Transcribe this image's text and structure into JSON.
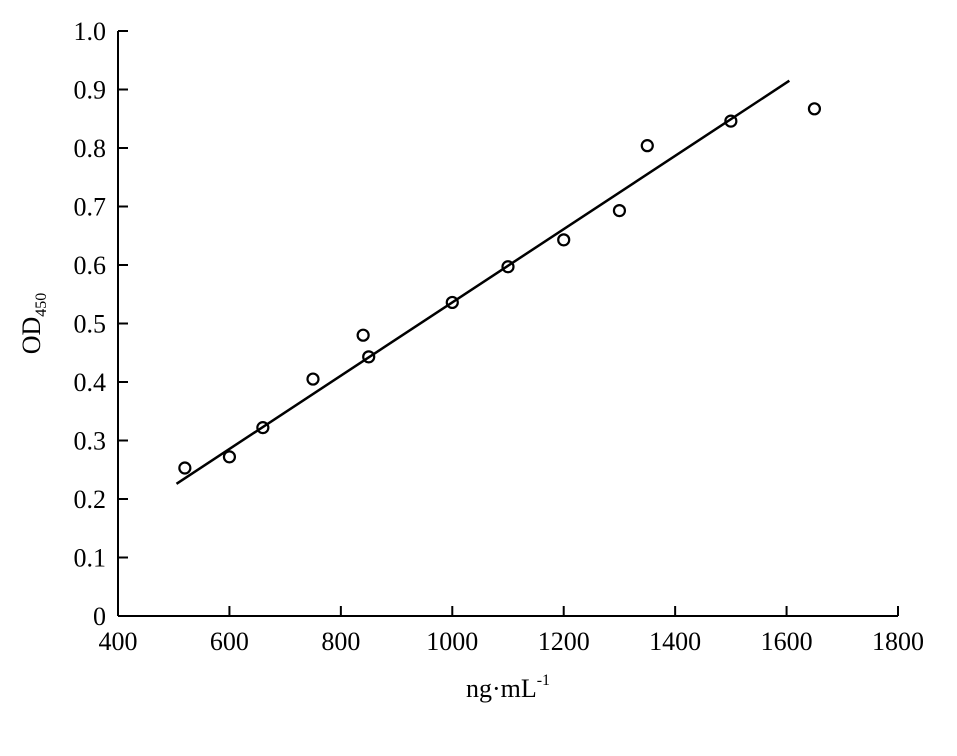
{
  "chart_data": {
    "type": "scatter",
    "x_ticks": [
      "400",
      "600",
      "800",
      "1000",
      "1200",
      "1400",
      "1600",
      "1800"
    ],
    "y_ticks": [
      "0",
      "0.1",
      "0.2",
      "0.3",
      "0.4",
      "0.5",
      "0.6",
      "0.7",
      "0.8",
      "0.9",
      "1.0"
    ],
    "xlim": [
      400,
      1800
    ],
    "ylim": [
      0,
      1.0
    ],
    "xlabel": {
      "main": "ng·mL",
      "sup": "-1"
    },
    "ylabel": {
      "main": "OD",
      "sub": "450"
    },
    "points": [
      {
        "x": 520,
        "y": 0.253
      },
      {
        "x": 600,
        "y": 0.272
      },
      {
        "x": 660,
        "y": 0.322
      },
      {
        "x": 750,
        "y": 0.405
      },
      {
        "x": 840,
        "y": 0.48
      },
      {
        "x": 850,
        "y": 0.443
      },
      {
        "x": 1000,
        "y": 0.536
      },
      {
        "x": 1100,
        "y": 0.597
      },
      {
        "x": 1200,
        "y": 0.643
      },
      {
        "x": 1300,
        "y": 0.693
      },
      {
        "x": 1350,
        "y": 0.804
      },
      {
        "x": 1500,
        "y": 0.846
      },
      {
        "x": 1650,
        "y": 0.867
      }
    ],
    "fit_line": {
      "x": [
        505,
        1605
      ],
      "y": [
        0.226,
        0.915
      ]
    },
    "grid": false,
    "legend": "none"
  }
}
